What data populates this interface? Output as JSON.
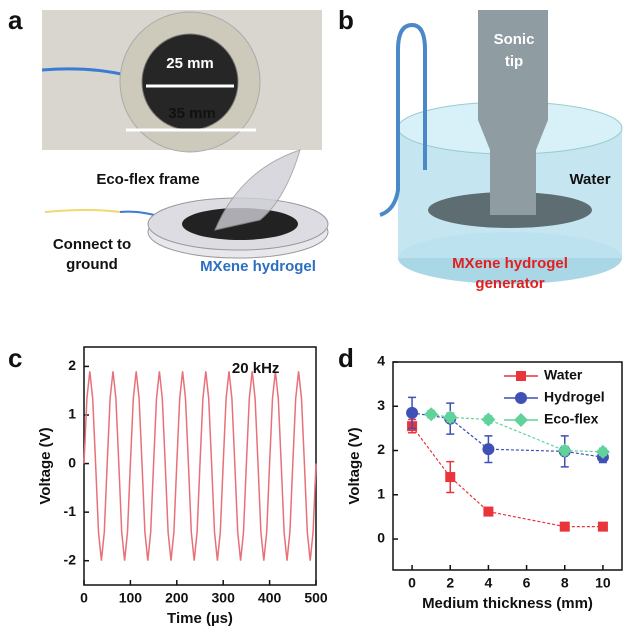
{
  "panel_labels": [
    "a",
    "b",
    "c",
    "d"
  ],
  "panel_a": {
    "inner_diameter": "25 mm",
    "outer_diameter": "35 mm",
    "frame_label": "Eco-flex frame",
    "ground_label": [
      "Connect to",
      "ground"
    ],
    "hydrogel_label": "MXene hydrogel"
  },
  "panel_b": {
    "tip_label": [
      "Sonic",
      "tip"
    ],
    "water_label": "Water",
    "generator_label": [
      "MXene hydrogel",
      "generator"
    ]
  },
  "chart_data": [
    {
      "type": "line",
      "annotation": "20 kHz",
      "xlabel": "Time (µs)",
      "ylabel": "Voltage (V)",
      "x": [
        0,
        6.25,
        12.5,
        18.75,
        25,
        31.25,
        37.5,
        43.75,
        50,
        56.25,
        62.5,
        68.75,
        75,
        81.25,
        87.5,
        93.75,
        100,
        106.25,
        112.5,
        118.75,
        125,
        131.25,
        137.5,
        143.75,
        150,
        156.25,
        162.5,
        168.75,
        175,
        181.25,
        187.5,
        193.75,
        200,
        206.25,
        212.5,
        218.75,
        225,
        231.25,
        237.5,
        243.75,
        250,
        256.25,
        262.5,
        268.75,
        275,
        281.25,
        287.5,
        293.75,
        300,
        306.25,
        312.5,
        318.75,
        325,
        331.25,
        337.5,
        343.75,
        350,
        356.25,
        362.5,
        368.75,
        375,
        381.25,
        387.5,
        393.75,
        400,
        406.25,
        412.5,
        418.75,
        425,
        431.25,
        437.5,
        443.75,
        450,
        456.25,
        462.5,
        468.75,
        475,
        481.25,
        487.5,
        493.75,
        500
      ],
      "values": [
        0,
        1.34,
        1.9,
        1.34,
        0,
        -1.41,
        -2,
        -1.41,
        0,
        1.34,
        1.9,
        1.34,
        0,
        -1.41,
        -2,
        -1.41,
        0,
        1.34,
        1.9,
        1.34,
        0,
        -1.41,
        -2,
        -1.41,
        0,
        1.34,
        1.9,
        1.34,
        0,
        -1.41,
        -2,
        -1.41,
        0,
        1.34,
        1.9,
        1.34,
        0,
        -1.41,
        -2,
        -1.41,
        0,
        1.34,
        1.9,
        1.34,
        0,
        -1.41,
        -2,
        -1.41,
        0,
        1.34,
        1.9,
        1.34,
        0,
        -1.41,
        -2,
        -1.41,
        0,
        1.34,
        1.9,
        1.34,
        0,
        -1.41,
        -2,
        -1.41,
        0,
        1.34,
        1.9,
        1.34,
        0,
        -1.41,
        -2,
        -1.41,
        0,
        1.34,
        1.9,
        1.34,
        0,
        -1.41,
        -2,
        -1.41,
        0
      ],
      "color": "#e8707a",
      "xlim": [
        0,
        500
      ],
      "ylim": [
        -2.5,
        2.4
      ],
      "xticks": [
        0,
        100,
        200,
        300,
        400,
        500
      ],
      "yticks": [
        -2,
        -1,
        0,
        1,
        2
      ]
    },
    {
      "type": "errorline",
      "xlabel": "Medium thickness (mm)",
      "ylabel": "Voltage (V)",
      "legend": "upper right",
      "series": [
        {
          "name": "Water",
          "color": "#e8343a",
          "marker": "square",
          "x": [
            0,
            2,
            4,
            8,
            10
          ],
          "values": [
            2.55,
            1.4,
            0.62,
            0.28,
            0.28
          ],
          "errors": [
            0.15,
            0.35,
            0.05,
            0.05,
            0.05
          ]
        },
        {
          "name": "Hydrogel",
          "color": "#3f51b5",
          "marker": "circle",
          "x": [
            0,
            2,
            4,
            8,
            10
          ],
          "values": [
            2.85,
            2.72,
            2.03,
            1.98,
            1.85
          ],
          "errors": [
            0.35,
            0.35,
            0.3,
            0.35,
            0.12
          ]
        },
        {
          "name": "Eco-flex",
          "color": "#5fd39a",
          "marker": "diamond",
          "x": [
            1,
            2,
            4,
            8,
            10
          ],
          "values": [
            2.82,
            2.75,
            2.7,
            2.0,
            1.97
          ],
          "errors": [
            0.08,
            0.1,
            0.08,
            0.1,
            0.08
          ]
        }
      ],
      "xlim": [
        -1,
        11
      ],
      "ylim": [
        -0.7,
        4
      ],
      "xticks": [
        0,
        2,
        4,
        6,
        8,
        10
      ],
      "yticks": [
        0,
        1,
        2,
        3,
        4
      ]
    }
  ]
}
